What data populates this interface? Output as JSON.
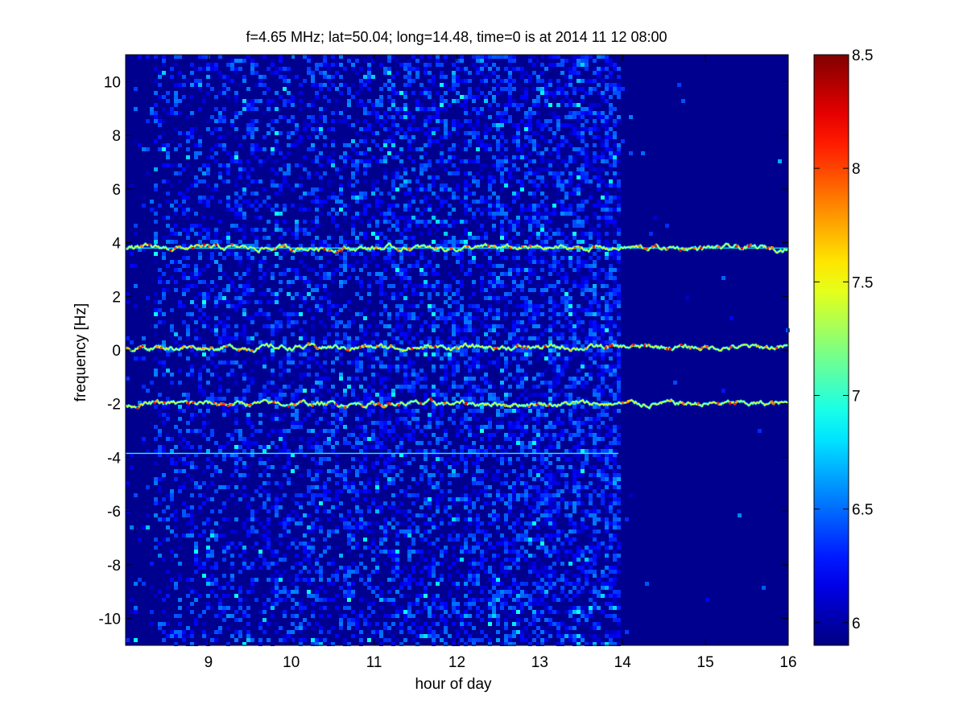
{
  "chart_data": {
    "type": "heatmap",
    "title": "f=4.65 MHz;  lat=50.04; long=14.48, time=0 is at 2014 11 12 08:00",
    "xlabel": "hour of day",
    "ylabel": "frequency [Hz]",
    "xlim": [
      8,
      16
    ],
    "ylim": [
      -11,
      11
    ],
    "x_ticks": [
      9,
      10,
      11,
      12,
      13,
      14,
      15,
      16
    ],
    "y_ticks": [
      -10,
      -8,
      -6,
      -4,
      -2,
      0,
      2,
      4,
      6,
      8,
      10
    ],
    "x_tick_labels": [
      "9",
      "10",
      "11",
      "12",
      "13",
      "14",
      "15",
      "16"
    ],
    "y_tick_labels": [
      "-10",
      "-8",
      "-6",
      "-4",
      "-2",
      "0",
      "2",
      "4",
      "6",
      "8",
      "10"
    ],
    "colorbar": {
      "colormap": "jet",
      "clim": [
        5.9,
        8.5
      ],
      "ticks": [
        6,
        6.5,
        7,
        7.5,
        8,
        8.5
      ],
      "tick_labels": [
        "6",
        "6.5",
        "7",
        "7.5",
        "8",
        "8.5"
      ]
    },
    "background_color": "#00008f",
    "features": [
      {
        "kind": "doppler-trace",
        "center_hz": 3.8,
        "x_range": [
          8,
          16
        ],
        "variability_hz": 0.3
      },
      {
        "kind": "doppler-trace",
        "center_hz": 0.1,
        "x_range": [
          8,
          16
        ],
        "variability_hz": 0.4
      },
      {
        "kind": "doppler-trace",
        "center_hz": -2.0,
        "x_range": [
          8,
          16
        ],
        "variability_hz": 0.4
      },
      {
        "kind": "reference-line",
        "center_hz": 3.8,
        "x_range": [
          8,
          16
        ]
      },
      {
        "kind": "reference-line",
        "center_hz": -3.85,
        "x_range": [
          8,
          13.95
        ]
      },
      {
        "kind": "elevated-noise",
        "x_range": [
          8.3,
          13.95
        ]
      },
      {
        "kind": "quiet-band",
        "x_range": [
          13.95,
          16
        ]
      }
    ]
  }
}
